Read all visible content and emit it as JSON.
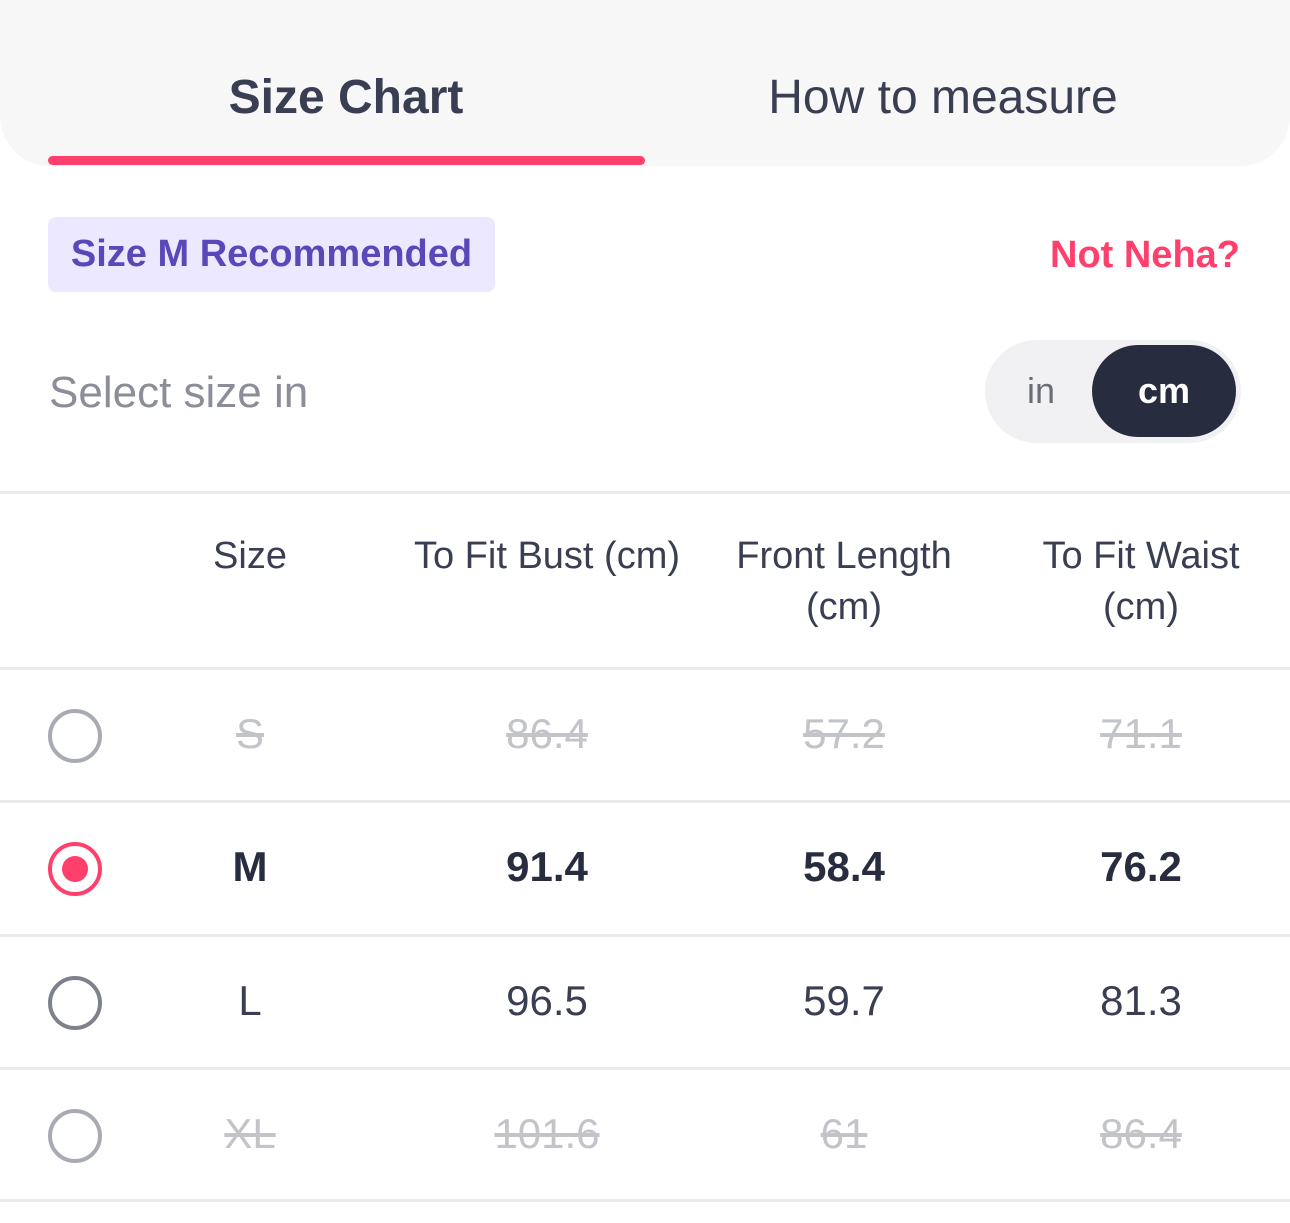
{
  "tabs": [
    {
      "label": "Size Chart",
      "active": true
    },
    {
      "label": "How to measure",
      "active": false
    }
  ],
  "recommendation": {
    "badge": "Size M Recommended",
    "not_user_link": "Not Neha?"
  },
  "unit_select": {
    "label": "Select size in",
    "options": [
      "in",
      "cm"
    ],
    "selected": "cm"
  },
  "table": {
    "headers": {
      "size": "Size",
      "bust": "To Fit Bust (cm)",
      "length_line1": "Front Length",
      "length_line2": "(cm)",
      "waist_line1": "To Fit Waist",
      "waist_line2": "(cm)"
    },
    "rows": [
      {
        "size": "S",
        "bust": "86.4",
        "length": "57.2",
        "waist": "71.1",
        "state": "unavailable"
      },
      {
        "size": "M",
        "bust": "91.4",
        "length": "58.4",
        "waist": "76.2",
        "state": "selected"
      },
      {
        "size": "L",
        "bust": "96.5",
        "length": "59.7",
        "waist": "81.3",
        "state": "available"
      },
      {
        "size": "XL",
        "bust": "101.6",
        "length": "61",
        "waist": "86.4",
        "state": "unavailable"
      }
    ]
  },
  "colors": {
    "accent": "#ff3f6c",
    "badge_bg": "#ece8ff",
    "badge_text": "#5a47b8",
    "dark": "#282c3f"
  }
}
